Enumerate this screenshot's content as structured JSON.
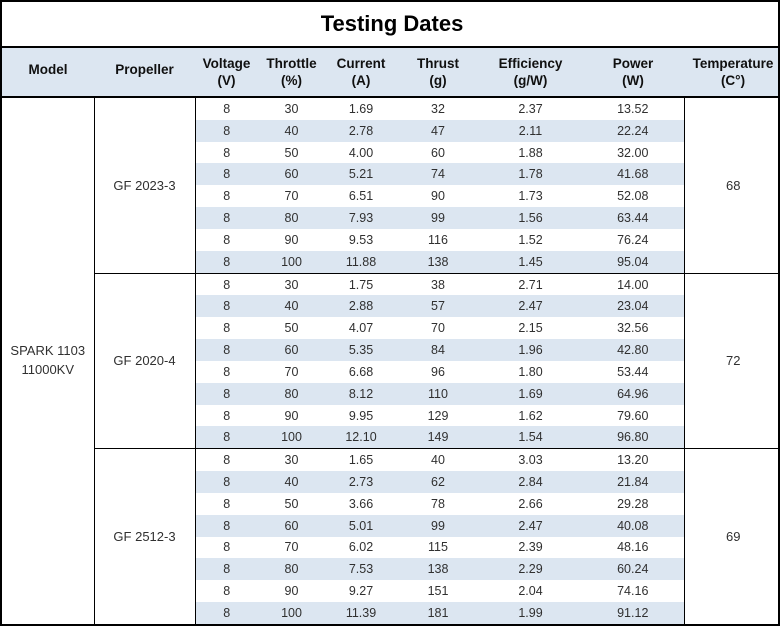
{
  "title": "Testing Dates",
  "colors": {
    "header_bg": "#dce6f1",
    "stripe_bg": "#dce6f1",
    "border": "#000000",
    "text": "#303030"
  },
  "columns": [
    {
      "label": "Model",
      "unit": ""
    },
    {
      "label": "Propeller",
      "unit": ""
    },
    {
      "label": "Voltage",
      "unit": "(V)"
    },
    {
      "label": "Throttle",
      "unit": "(%)"
    },
    {
      "label": "Current",
      "unit": "(A)"
    },
    {
      "label": "Thrust",
      "unit": "(g)"
    },
    {
      "label": "Efficiency",
      "unit": "(g/W)"
    },
    {
      "label": "Power",
      "unit": "(W)"
    },
    {
      "label": "Temperature",
      "unit": "(C°)"
    }
  ],
  "model": {
    "line1": "SPARK 1103",
    "line2": "11000KV"
  },
  "blocks": [
    {
      "propeller": "GF 2023-3",
      "temperature": "68",
      "rows": [
        [
          "8",
          "30",
          "1.69",
          "32",
          "2.37",
          "13.52"
        ],
        [
          "8",
          "40",
          "2.78",
          "47",
          "2.11",
          "22.24"
        ],
        [
          "8",
          "50",
          "4.00",
          "60",
          "1.88",
          "32.00"
        ],
        [
          "8",
          "60",
          "5.21",
          "74",
          "1.78",
          "41.68"
        ],
        [
          "8",
          "70",
          "6.51",
          "90",
          "1.73",
          "52.08"
        ],
        [
          "8",
          "80",
          "7.93",
          "99",
          "1.56",
          "63.44"
        ],
        [
          "8",
          "90",
          "9.53",
          "116",
          "1.52",
          "76.24"
        ],
        [
          "8",
          "100",
          "11.88",
          "138",
          "1.45",
          "95.04"
        ]
      ]
    },
    {
      "propeller": "GF 2020-4",
      "temperature": "72",
      "rows": [
        [
          "8",
          "30",
          "1.75",
          "38",
          "2.71",
          "14.00"
        ],
        [
          "8",
          "40",
          "2.88",
          "57",
          "2.47",
          "23.04"
        ],
        [
          "8",
          "50",
          "4.07",
          "70",
          "2.15",
          "32.56"
        ],
        [
          "8",
          "60",
          "5.35",
          "84",
          "1.96",
          "42.80"
        ],
        [
          "8",
          "70",
          "6.68",
          "96",
          "1.80",
          "53.44"
        ],
        [
          "8",
          "80",
          "8.12",
          "110",
          "1.69",
          "64.96"
        ],
        [
          "8",
          "90",
          "9.95",
          "129",
          "1.62",
          "79.60"
        ],
        [
          "8",
          "100",
          "12.10",
          "149",
          "1.54",
          "96.80"
        ]
      ]
    },
    {
      "propeller": "GF 2512-3",
      "temperature": "69",
      "rows": [
        [
          "8",
          "30",
          "1.65",
          "40",
          "3.03",
          "13.20"
        ],
        [
          "8",
          "40",
          "2.73",
          "62",
          "2.84",
          "21.84"
        ],
        [
          "8",
          "50",
          "3.66",
          "78",
          "2.66",
          "29.28"
        ],
        [
          "8",
          "60",
          "5.01",
          "99",
          "2.47",
          "40.08"
        ],
        [
          "8",
          "70",
          "6.02",
          "115",
          "2.39",
          "48.16"
        ],
        [
          "8",
          "80",
          "7.53",
          "138",
          "2.29",
          "60.24"
        ],
        [
          "8",
          "90",
          "9.27",
          "151",
          "2.04",
          "74.16"
        ],
        [
          "8",
          "100",
          "11.39",
          "181",
          "1.99",
          "91.12"
        ]
      ]
    }
  ]
}
